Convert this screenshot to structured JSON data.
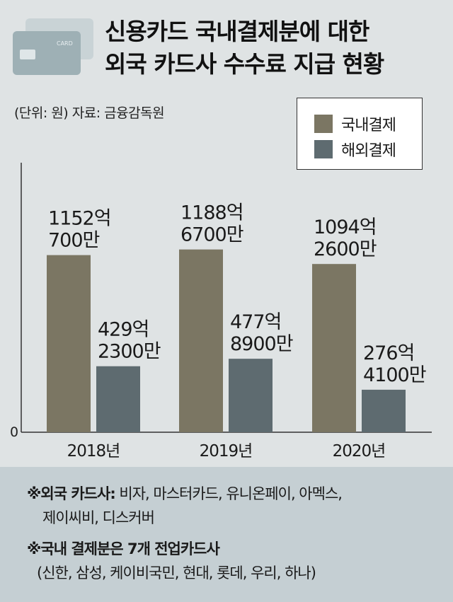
{
  "title_lines": [
    "신용카드 국내결제분에 대한",
    "외국 카드사 수수료 지급 현황"
  ],
  "icon": {
    "name": "credit-card-icon",
    "card_text": "CARD"
  },
  "unit_source": "(단위: 원) 자료: 금융감독원",
  "colors": {
    "domestic": "#7b7663",
    "overseas": "#5e6b70",
    "background": "#dfe3e4",
    "footer": "#c5cfd3"
  },
  "chart_data": {
    "type": "bar",
    "categories": [
      "2018년",
      "2019년",
      "2020년"
    ],
    "series": [
      {
        "name": "국내결제",
        "values": [
          115207000000,
          118867000000,
          109426000000
        ],
        "labels": [
          [
            "1152억",
            "700만"
          ],
          [
            "1188억",
            "6700만"
          ],
          [
            "1094억",
            "2600만"
          ]
        ]
      },
      {
        "name": "해외결제",
        "values": [
          42923000000,
          47789000000,
          27641000000
        ],
        "labels": [
          [
            "429억",
            "2300만"
          ],
          [
            "477억",
            "8900만"
          ],
          [
            "276억",
            "4100만"
          ]
        ]
      }
    ],
    "y_zero_label": "0",
    "ylim": [
      0,
      150000000000
    ],
    "legend_position": "top-right",
    "grid": false
  },
  "notes": [
    {
      "bold": "※외국 카드사:",
      "text": " 비자, 마스터카드, 유니온페이, 아멕스,",
      "cont": "제이씨비, 디스커버"
    },
    {
      "bold": "※국내 결제분은 7개 전업카드사",
      "text": "",
      "cont": "(신한, 삼성, 케이비국민, 현대, 롯데, 우리, 하나)"
    }
  ]
}
